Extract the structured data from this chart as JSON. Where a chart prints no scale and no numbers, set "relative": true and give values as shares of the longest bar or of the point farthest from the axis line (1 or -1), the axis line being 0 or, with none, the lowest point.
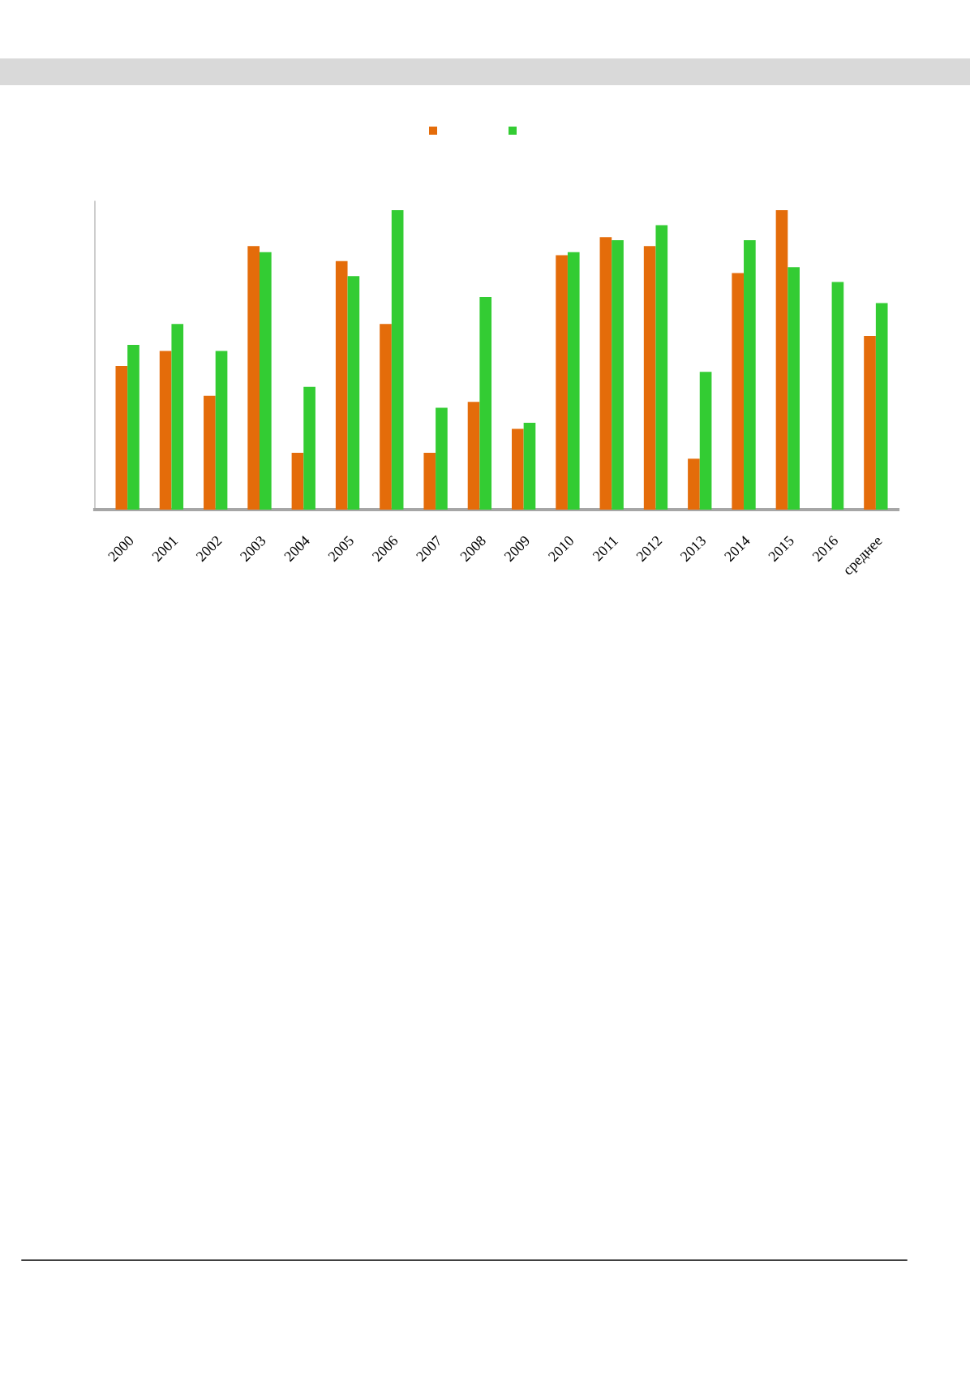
{
  "chart_data": {
    "type": "bar",
    "relative": true,
    "tick_labels": "x",
    "categories": [
      "2000",
      "2001",
      "2002",
      "2003",
      "2004",
      "2005",
      "2006",
      "2007",
      "2008",
      "2009",
      "2010",
      "2011",
      "2012",
      "2013",
      "2014",
      "2015",
      "2016",
      "среднее"
    ],
    "series": [
      {
        "color": "#e46c0a",
        "values": [
          0.48,
          0.53,
          0.38,
          0.88,
          0.19,
          0.83,
          0.62,
          0.19,
          0.36,
          0.27,
          0.85,
          0.91,
          0.88,
          0.17,
          0.79,
          1.0,
          null,
          0.58
        ]
      },
      {
        "color": "#33cc33",
        "values": [
          0.55,
          0.62,
          0.53,
          0.86,
          0.41,
          0.78,
          1.0,
          0.34,
          0.71,
          0.29,
          0.86,
          0.9,
          0.95,
          0.46,
          0.9,
          0.81,
          0.76,
          0.69
        ]
      }
    ]
  }
}
